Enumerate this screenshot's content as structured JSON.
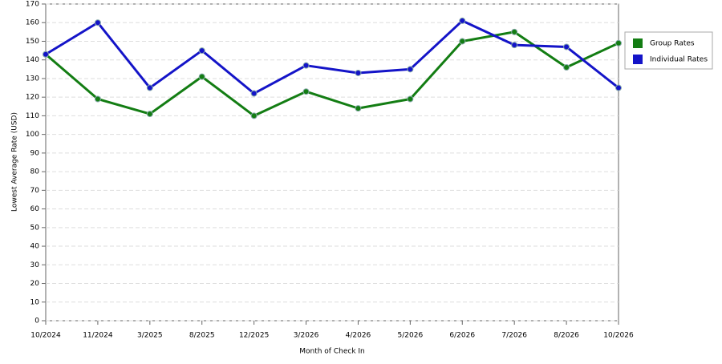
{
  "chart_data": {
    "type": "line",
    "x_label": "Month of Check In",
    "y_label": "Lowest Average Rate (USD)",
    "categories": [
      "10/2024",
      "11/2024",
      "3/2025",
      "8/2025",
      "12/2025",
      "3/2026",
      "4/2026",
      "5/2026",
      "6/2026",
      "7/2026",
      "8/2026",
      "10/2026"
    ],
    "series": [
      {
        "name": "Group Rates",
        "color": "#137d13",
        "values": [
          143,
          119,
          111,
          131,
          110,
          123,
          114,
          119,
          150,
          155,
          136,
          149
        ]
      },
      {
        "name": "Individual Rates",
        "color": "#1414c8",
        "values": [
          143,
          160,
          125,
          145,
          122,
          137,
          133,
          135,
          161,
          148,
          147,
          125
        ]
      }
    ],
    "ylim": [
      0,
      170
    ],
    "yticks": [
      0,
      10,
      20,
      30,
      40,
      50,
      60,
      70,
      80,
      90,
      100,
      110,
      120,
      130,
      140,
      150,
      160,
      170
    ],
    "grid": true,
    "legend": "right"
  }
}
